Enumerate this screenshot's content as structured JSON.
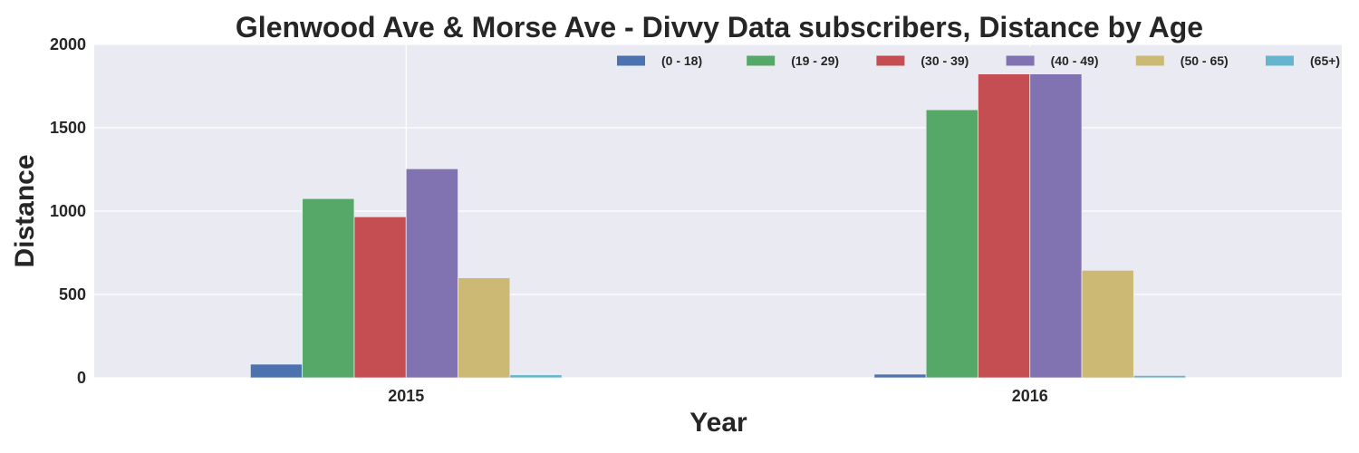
{
  "chart_data": {
    "type": "bar",
    "title": "Glenwood Ave & Morse Ave - Divvy Data subscribers, Distance by Age",
    "xlabel": "Year",
    "ylabel": "Distance",
    "categories": [
      "2015",
      "2016"
    ],
    "ylim": [
      0,
      2000
    ],
    "yticks": [
      0,
      500,
      1000,
      1500,
      2000
    ],
    "grid": true,
    "legend_position": "top-right",
    "series": [
      {
        "name": "(0 - 18)",
        "color": "#4c72b0",
        "values": [
          82,
          22
        ]
      },
      {
        "name": "(19 - 29)",
        "color": "#55a868",
        "values": [
          1075,
          1608
        ]
      },
      {
        "name": "(30 - 39)",
        "color": "#c44e52",
        "values": [
          966,
          1828
        ]
      },
      {
        "name": "(40 - 49)",
        "color": "#8172b2",
        "values": [
          1254,
          1828
        ]
      },
      {
        "name": "(50 - 65)",
        "color": "#ccb974",
        "values": [
          600,
          645
        ]
      },
      {
        "name": "(65+)",
        "color": "#64b5cd",
        "values": [
          18,
          14
        ]
      }
    ]
  },
  "colors": {
    "plot_background": "#eaeaf2",
    "grid": "#ffffff",
    "text": "#262626"
  }
}
